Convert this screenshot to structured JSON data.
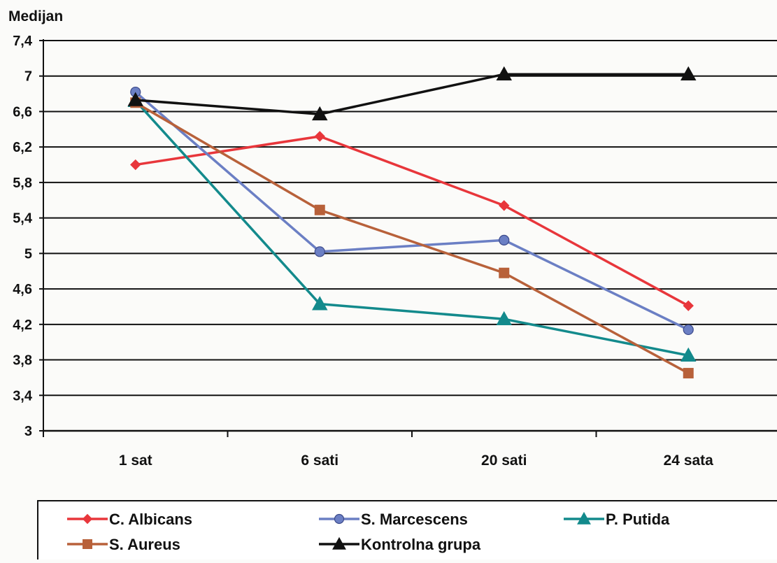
{
  "chart_data": {
    "type": "line",
    "ylabel": "Medijan",
    "xlabel": "",
    "title": "",
    "categories": [
      "1 sat",
      "6 sati",
      "20 sati",
      "24 sata"
    ],
    "ylim": [
      3,
      7.4
    ],
    "yticks": [
      3,
      3.4,
      3.8,
      4.2,
      4.6,
      5,
      5.4,
      5.8,
      6.2,
      6.6,
      7,
      7.4
    ],
    "ytick_labels": [
      "3",
      "3,4",
      "3,8",
      "4,2",
      "4,6",
      "5",
      "5,4",
      "5,8",
      "6,2",
      "6,6",
      "7",
      "7,4"
    ],
    "grid": true,
    "legend_position": "bottom",
    "series": [
      {
        "name": "C. Albicans",
        "values": [
          6.0,
          6.32,
          5.54,
          4.41
        ],
        "color": "#e8363b",
        "marker": "diamond"
      },
      {
        "name": "S. Marcescens",
        "values": [
          6.82,
          5.02,
          5.15,
          4.14
        ],
        "color": "#6b7fc4",
        "marker": "circle"
      },
      {
        "name": "P. Putida",
        "values": [
          6.72,
          4.43,
          4.26,
          3.85
        ],
        "color": "#138a8c",
        "marker": "triangle"
      },
      {
        "name": "S. Aureus",
        "values": [
          6.7,
          5.49,
          4.78,
          3.65
        ],
        "color": "#b8613a",
        "marker": "square"
      },
      {
        "name": "Kontrolna grupa",
        "values": [
          6.73,
          6.57,
          7.02,
          7.02
        ],
        "color": "#111111",
        "marker": "triangle"
      }
    ]
  }
}
